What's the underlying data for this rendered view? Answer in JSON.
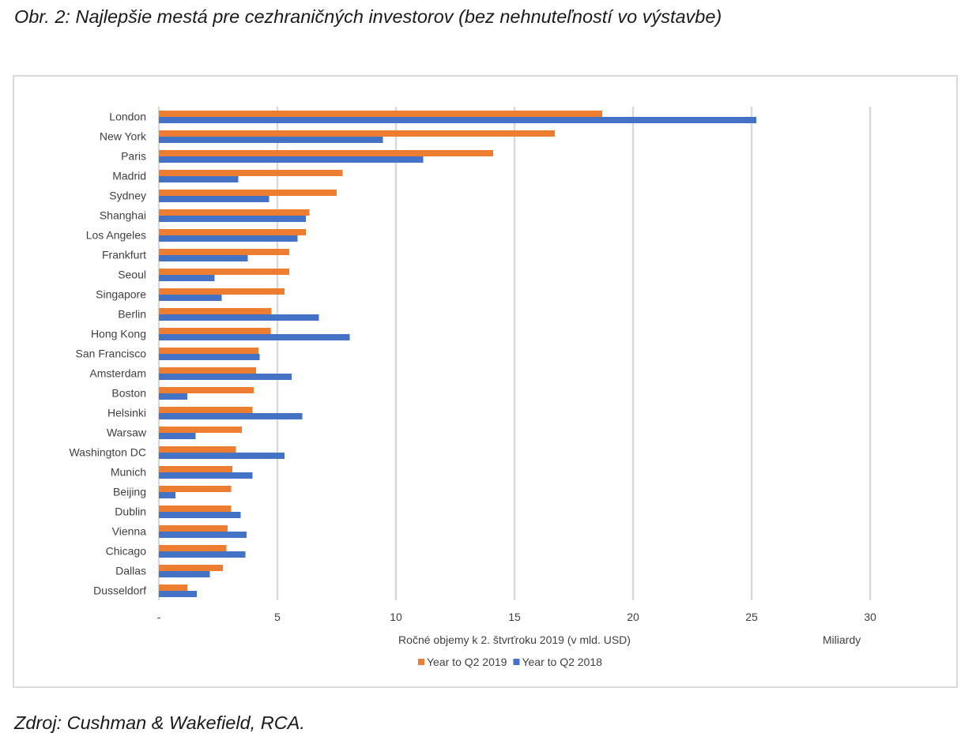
{
  "figure_title": "Obr. 2: Najlepšie mestá pre cezhraničných investorov (bez nehnuteľností vo výstavbe)",
  "source": "Zdroj: Cushman & Wakefield, RCA.",
  "chart_data": {
    "type": "bar",
    "orientation": "horizontal",
    "categories": [
      "London",
      "New York",
      "Paris",
      "Madrid",
      "Sydney",
      "Shanghai",
      "Los Angeles",
      "Frankfurt",
      "Seoul",
      "Singapore",
      "Berlin",
      "Hong Kong",
      "San Francisco",
      "Amsterdam",
      "Boston",
      "Helsinki",
      "Warsaw",
      "Washington DC",
      "Munich",
      "Beijing",
      "Dublin",
      "Vienna",
      "Chicago",
      "Dallas",
      "Dusseldorf"
    ],
    "series": [
      {
        "name": "Year to Q2 2019",
        "color": "#ED7D31",
        "values": [
          18.7,
          16.7,
          14.1,
          7.75,
          7.5,
          6.35,
          6.2,
          5.5,
          5.5,
          5.3,
          4.75,
          4.72,
          4.2,
          4.1,
          4.0,
          3.95,
          3.5,
          3.25,
          3.1,
          3.05,
          3.05,
          2.9,
          2.85,
          2.7,
          1.2
        ]
      },
      {
        "name": "Year to Q2 2018",
        "color": "#4472C4",
        "values": [
          25.2,
          9.45,
          11.15,
          3.35,
          4.65,
          6.2,
          5.85,
          3.75,
          2.35,
          2.65,
          6.75,
          8.05,
          4.25,
          5.6,
          1.2,
          6.05,
          1.55,
          5.3,
          3.95,
          0.7,
          3.45,
          3.7,
          3.65,
          2.15,
          1.6
        ]
      }
    ],
    "x_ticks": [
      "-",
      "5",
      "10",
      "15",
      "20",
      "25",
      "30"
    ],
    "xlim": [
      0,
      30
    ],
    "xlabel": "Ročné objemy k 2. štvrťroku 2019 (v mld. USD)",
    "unit_label": "Miliardy",
    "grid": "vertical",
    "legend_position": "bottom"
  }
}
